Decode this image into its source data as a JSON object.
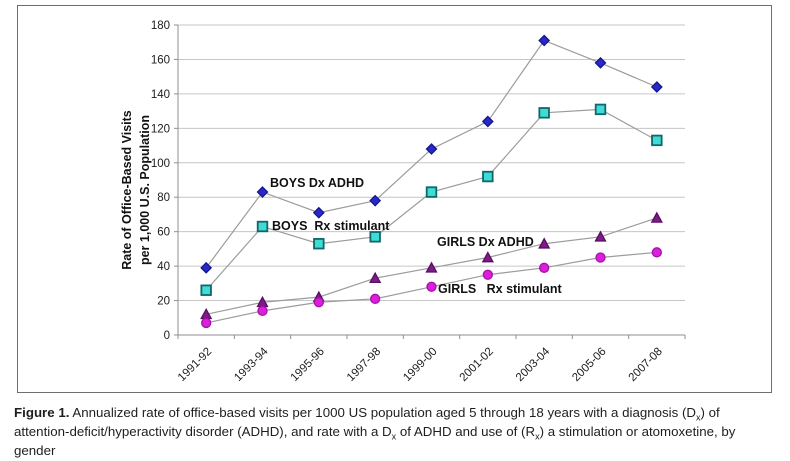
{
  "figure": {
    "caption": {
      "label": "Figure 1.",
      "part1": " Annualized rate of office-based visits per 1000 US population aged 5 through 18 years with a diagnosis (D",
      "sub1": "x",
      "part2": ") of attention-deficit/hyperactivity disorder (ADHD), and rate with a D",
      "sub2": "x",
      "part3": " of ADHD and use of (R",
      "sub3": "x",
      "part4": ") a stimulation or atomoxetine, by gender"
    }
  },
  "chart_data": {
    "type": "line",
    "title": "",
    "xlabel": "",
    "ylabel": "Rate of Office-Based Visits per 1,000 U.S. Population",
    "ylabel_lines": [
      "Rate of Office-Based Visits",
      "per 1,000 U.S. Population"
    ],
    "ylim": [
      0,
      180
    ],
    "ytick_step": 20,
    "grid": "horizontal",
    "legend_position": "inline-annotations",
    "categories": [
      "1991-92",
      "1993-94",
      "1995-96",
      "1997-98",
      "1999-00",
      "2001-02",
      "2003-04",
      "2005-06",
      "2007-08"
    ],
    "series": [
      {
        "name": "BOYS Dx ADHD",
        "label_text": "BOYS Dx ADHD",
        "marker": "diamond",
        "fill": "#2829c9",
        "edge": "#15158e",
        "values": [
          39,
          83,
          71,
          78,
          108,
          124,
          171,
          158,
          144
        ],
        "label_pos": [
          252,
          181
        ]
      },
      {
        "name": "BOYS Rx stimulant",
        "label_text": "BOYS  Rx stimulant",
        "marker": "square",
        "fill": "#3fdcd6",
        "edge": "#0f666b",
        "values": [
          26,
          63,
          53,
          57,
          83,
          92,
          129,
          131,
          113
        ],
        "label_pos": [
          254,
          224
        ]
      },
      {
        "name": "GIRLS Dx ADHD",
        "label_text": "GIRLS Dx ADHD",
        "marker": "triangle",
        "fill": "#7b1d87",
        "edge": "#580f63",
        "values": [
          12,
          19,
          22,
          33,
          39,
          45,
          53,
          57,
          68
        ],
        "label_pos": [
          419,
          240
        ]
      },
      {
        "name": "GIRLS Rx stimulant",
        "label_text": "GIRLS   Rx stimulant",
        "marker": "circle",
        "fill": "#dc1fdc",
        "edge": "#a512a5",
        "values": [
          7,
          14,
          19,
          21,
          28,
          35,
          39,
          45,
          48
        ],
        "label_pos": [
          420,
          287
        ]
      }
    ],
    "line_color": "#9c9c9c",
    "axis_color": "#8f8f8f",
    "gridline_color": "#c6c6c6"
  }
}
